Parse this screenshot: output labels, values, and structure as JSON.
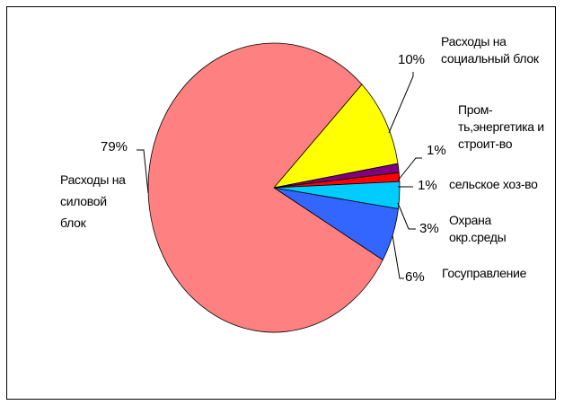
{
  "chart_data": {
    "type": "pie",
    "title": "",
    "slices": [
      {
        "label": "Расходы на социальный блок",
        "value": 10,
        "value_label": "10%",
        "color": "#FFFF00"
      },
      {
        "label": "Пром-ть,энергетика и строит-во",
        "value": 1,
        "value_label": "1%",
        "color": "#800080"
      },
      {
        "label": "сельское хоз-во",
        "value": 1,
        "value_label": "1%",
        "color": "#FF0000"
      },
      {
        "label": "Охрана окр.среды",
        "value": 3,
        "value_label": "3%",
        "color": "#00CCFF"
      },
      {
        "label": "Госуправление",
        "value": 6,
        "value_label": "6%",
        "color": "#3366FF"
      },
      {
        "label": "Расходы на силовой блок",
        "value": 79,
        "value_label": "79%",
        "color": "#FF8080"
      }
    ],
    "legend": "none",
    "label_style": "outside labels with leader lines"
  }
}
